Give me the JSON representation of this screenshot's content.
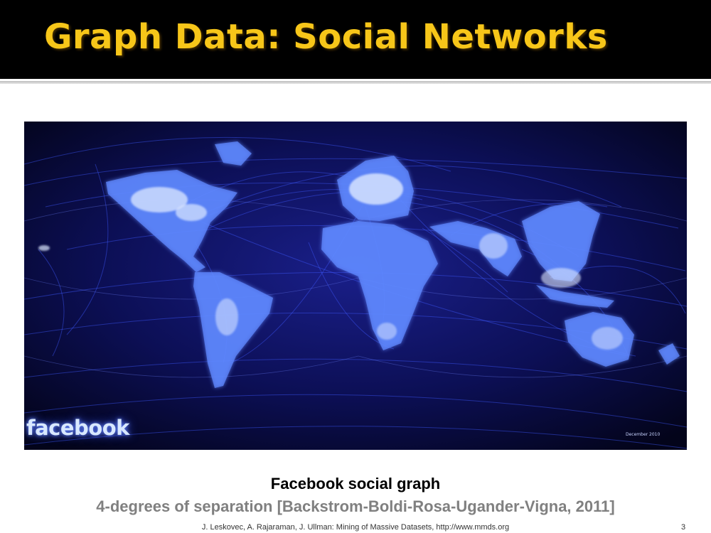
{
  "slide": {
    "title": "Graph Data: Social Networks",
    "caption_main": "Facebook social graph",
    "caption_sub": "4-degrees of separation [Backstrom-Boldi-Rosa-Ugander-Vigna, 2011]",
    "footer": "J. Leskovec, A. Rajaraman, J. Ullman: Mining of Massive Datasets, http://www.mmds.org",
    "page_number": "3"
  },
  "figure": {
    "logo_text": "facebook",
    "date_stamp": "December 2010"
  },
  "colors": {
    "title_bar": "#000000",
    "title_text": "#f7c619",
    "caption_sub": "#808080",
    "map_background": "#050618",
    "map_glow": "#3a52ff"
  }
}
